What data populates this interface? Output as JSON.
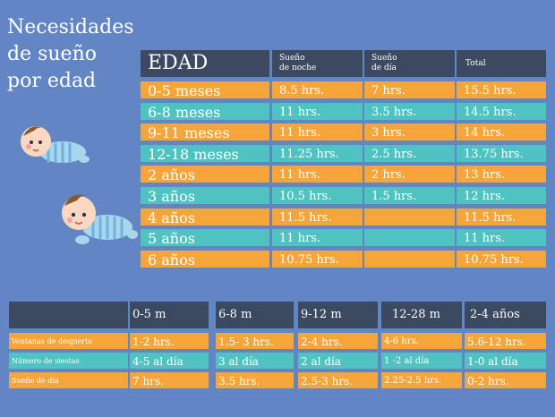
{
  "title": "Necesidades\nde sueño\npor edad",
  "colors": {
    "background": "#6286c4",
    "header": "#3b4a60",
    "orange": "#f5a53a",
    "teal": "#4ec3c1"
  },
  "table1": {
    "headers": [
      "EDAD",
      "Sueño\nde noche",
      "Sueño\nde día",
      "Total"
    ],
    "rows": [
      [
        "0-5 meses",
        "8.5 hrs.",
        "7 hrs.",
        "15.5 hrs."
      ],
      [
        "6-8 meses",
        "11 hrs.",
        "3.5 hrs.",
        "14.5 hrs."
      ],
      [
        "9-11 meses",
        "11 hrs.",
        "3 hrs.",
        "14 hrs."
      ],
      [
        "12-18 meses",
        "11.25 hrs.",
        "2.5 hrs.",
        "13.75 hrs."
      ],
      [
        "2 años",
        "11 hrs.",
        "2 hrs.",
        "13 hrs."
      ],
      [
        "3 años",
        "10.5 hrs.",
        "1.5 hrs.",
        "12 hrs."
      ],
      [
        "4 años",
        "11.5 hrs.",
        "",
        "11.5 hrs."
      ],
      [
        "5 años",
        "11 hrs.",
        "",
        "11 hrs."
      ],
      [
        "6 años",
        "10.75 hrs.",
        "",
        "10.75 hrs."
      ]
    ]
  },
  "table2": {
    "headers": [
      "",
      "0-5 m",
      "6-8 m",
      "9-12 m",
      "12-28 m",
      "2-4 años"
    ],
    "rows": [
      [
        "Ventanas de despierto",
        "1-2 hrs.",
        "1.5- 3 hrs.",
        "2-4 hrs.",
        "4-6 hrs.",
        "5.6-12 hrs."
      ],
      [
        "Número de siestas",
        "4-5 al día",
        "3 al día",
        "2 al día",
        "1 -2 al día",
        "1-0 al día"
      ],
      [
        "Sueño de día",
        "7 hrs.",
        "3.5 hrs.",
        "2.5-3 hrs.",
        "2.25-2.5 hrs.",
        "0-2 hrs."
      ]
    ]
  }
}
